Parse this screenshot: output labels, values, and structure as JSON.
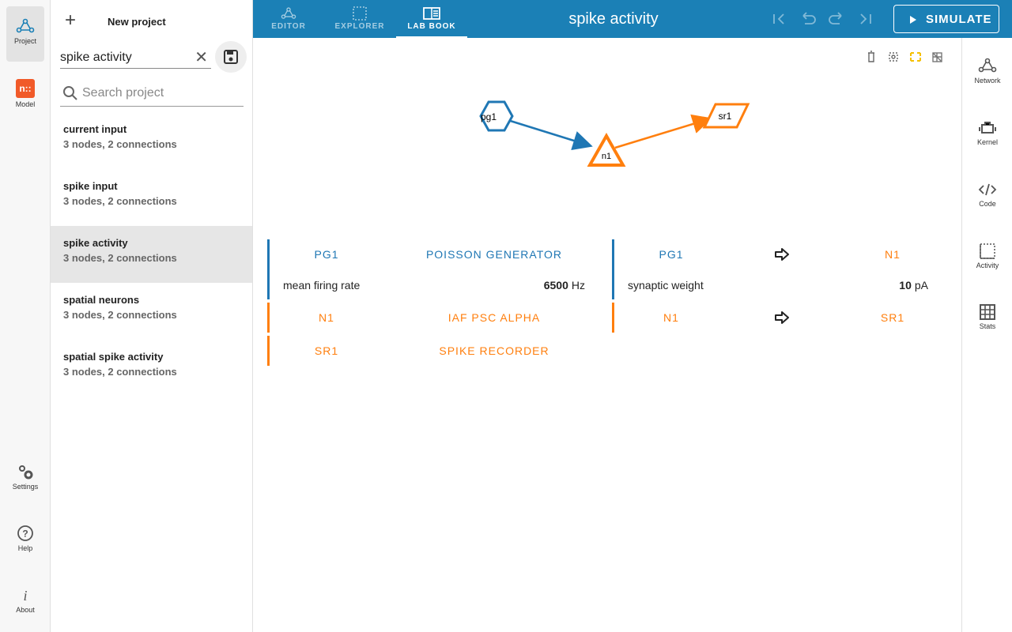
{
  "nav": {
    "top": [
      {
        "label": "Project"
      },
      {
        "label": "Model"
      }
    ],
    "logo": "n::",
    "bottom": [
      {
        "label": "Settings"
      },
      {
        "label": "Help"
      },
      {
        "label": "About"
      }
    ],
    "active": 0
  },
  "project_panel": {
    "new_project": "New project",
    "project_name": "spike activity",
    "search_placeholder": "Search project",
    "projects": [
      {
        "name": "current input",
        "info": "3 nodes, 2 connections"
      },
      {
        "name": "spike input",
        "info": "3 nodes, 2 connections"
      },
      {
        "name": "spike activity",
        "info": "3 nodes, 2 connections"
      },
      {
        "name": "spatial neurons",
        "info": "3 nodes, 2 connections"
      },
      {
        "name": "spatial spike activity",
        "info": "3 nodes, 2 connections"
      }
    ],
    "selected": 2
  },
  "toolbar": {
    "tabs": [
      "EDITOR",
      "EXPLORER",
      "LAB BOOK"
    ],
    "active_tab": 2,
    "title": "spike activity",
    "simulate": "SIMULATE"
  },
  "right_nav": [
    "Network",
    "Kernel",
    "Code",
    "Activity",
    "Stats"
  ],
  "graph": {
    "nodes": [
      {
        "label": "pg1",
        "color": "#1f77b4"
      },
      {
        "label": "n1",
        "color": "#ff7f0e"
      },
      {
        "label": "sr1",
        "color": "#ff7f0e"
      }
    ]
  },
  "nodes_table": [
    {
      "id": "PG1",
      "model": "POISSON GENERATOR",
      "color": "#1f77b4",
      "params": [
        {
          "name": "mean firing rate",
          "value": "6500",
          "unit": "Hz"
        }
      ]
    },
    {
      "id": "N1",
      "model": "IAF PSC ALPHA",
      "color": "#ff7f0e",
      "params": []
    },
    {
      "id": "SR1",
      "model": "SPIKE RECORDER",
      "color": "#ff7f0e",
      "params": []
    }
  ],
  "connections": [
    {
      "source": "PG1",
      "target": "N1",
      "color": "#1f77b4",
      "params": [
        {
          "name": "synaptic weight",
          "value": "10",
          "unit": "pA"
        }
      ]
    },
    {
      "source": "N1",
      "target": "SR1",
      "color": "#ff7f0e",
      "params": []
    }
  ]
}
